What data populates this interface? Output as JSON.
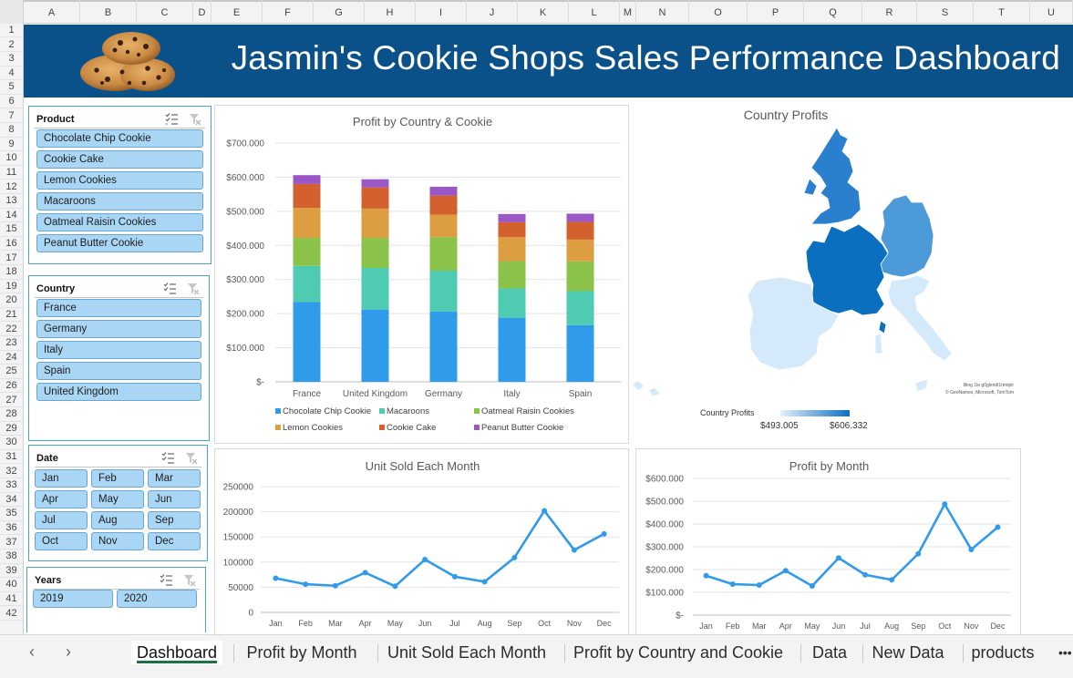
{
  "columns": [
    "A",
    "B",
    "C",
    "D",
    "E",
    "F",
    "G",
    "H",
    "I",
    "J",
    "K",
    "L",
    "M",
    "N",
    "O",
    "P",
    "Q",
    "R",
    "S",
    "T",
    "U"
  ],
  "rows": [
    "1",
    "2",
    "3",
    "4",
    "5",
    "6",
    "7",
    "8",
    "9",
    "10",
    "11",
    "12",
    "13",
    "14",
    "15",
    "16",
    "17",
    "18",
    "19",
    "20",
    "21",
    "22",
    "23",
    "24",
    "25",
    "26",
    "27",
    "28",
    "29",
    "30",
    "31",
    "32",
    "33",
    "34",
    "35",
    "36",
    "37",
    "38",
    "39",
    "40",
    "41",
    "42"
  ],
  "dashboard": {
    "title": "Jasmin's Cookie Shops Sales Performance Dashboard",
    "logo_icon": "cookies-image"
  },
  "slicers": {
    "product": {
      "label": "Product",
      "items": [
        "Chocolate Chip Cookie",
        "Cookie Cake",
        "Lemon Cookies",
        "Macaroons",
        "Oatmeal Raisin Cookies",
        "Peanut Butter Cookie"
      ]
    },
    "country": {
      "label": "Country",
      "items": [
        "France",
        "Germany",
        "Italy",
        "Spain",
        "United Kingdom"
      ]
    },
    "date": {
      "label": "Date",
      "items": [
        "Jan",
        "Feb",
        "Mar",
        "Apr",
        "May",
        "Jun",
        "Jul",
        "Aug",
        "Sep",
        "Oct",
        "Nov",
        "Dec"
      ]
    },
    "years": {
      "label": "Years",
      "items": [
        "2019",
        "2020"
      ]
    },
    "multiselect_icon": "multi-select-icon",
    "clear_icon": "clear-filter-icon"
  },
  "map": {
    "title": "Country Profits",
    "legend_title": "Country Profits",
    "legend_min": "$493.005",
    "legend_max": "$606.332",
    "attribution_line1": "Bing 1le g0glendl1rtmlplr",
    "attribution_line2": "© GeoNames, Microsoft, TomTom",
    "colors": {
      "high": "#0b6fc0",
      "mid": "#2b7fcf",
      "midlow": "#4d9ad8",
      "low": "#d4e9f9"
    }
  },
  "chart_data": [
    {
      "type": "bar",
      "stacked": true,
      "title": "Profit by Country & Cookie",
      "categories": [
        "France",
        "United Kingdom",
        "Germany",
        "Italy",
        "Spain"
      ],
      "y_ticks": [
        "$-",
        "$100.000",
        "$200.000",
        "$300.000",
        "$400.000",
        "$500.000",
        "$600.000",
        "$700.000"
      ],
      "ylim": [
        0,
        700000
      ],
      "legend_position": "bottom",
      "series": [
        {
          "name": "Chocolate Chip Cookie",
          "color": "#2f9bea",
          "values": [
            234000,
            212000,
            206000,
            188000,
            166000
          ]
        },
        {
          "name": "Macaroons",
          "color": "#4ecbb0",
          "values": [
            106000,
            122000,
            120000,
            86000,
            100000
          ]
        },
        {
          "name": "Oatmeal Raisin Cookies",
          "color": "#8bc34a",
          "values": [
            82000,
            88000,
            98000,
            80000,
            87000
          ]
        },
        {
          "name": "Lemon Cookies",
          "color": "#dd9e42",
          "values": [
            88000,
            86000,
            66000,
            70000,
            64000
          ]
        },
        {
          "name": "Cookie Cake",
          "color": "#d3612d",
          "values": [
            70000,
            62000,
            56000,
            44000,
            52000
          ]
        },
        {
          "name": "Peanut Butter Cookie",
          "color": "#9c57c7",
          "values": [
            26000,
            24000,
            26000,
            24000,
            24000
          ]
        }
      ]
    },
    {
      "type": "line",
      "title": "Unit Sold Each Month",
      "categories": [
        "Jan",
        "Feb",
        "Mar",
        "Apr",
        "May",
        "Jun",
        "Jul",
        "Aug",
        "Sep",
        "Oct",
        "Nov",
        "Dec"
      ],
      "y_ticks": [
        "0",
        "50000",
        "100000",
        "150000",
        "200000",
        "250000"
      ],
      "ylim": [
        0,
        250000
      ],
      "color": "#2f9bea",
      "values": [
        68000,
        56000,
        53000,
        79000,
        52000,
        105000,
        71000,
        61000,
        109000,
        202000,
        124000,
        156000
      ]
    },
    {
      "type": "line",
      "title": "Profit by Month",
      "categories": [
        "Jan",
        "Feb",
        "Mar",
        "Apr",
        "May",
        "Jun",
        "Jul",
        "Aug",
        "Sep",
        "Oct",
        "Nov",
        "Dec"
      ],
      "y_ticks": [
        "$-",
        "$100.000",
        "$200.000",
        "$300.000",
        "$400.000",
        "$500.000",
        "$600.000"
      ],
      "ylim": [
        0,
        600000
      ],
      "color": "#2f9bea",
      "values": [
        173000,
        136000,
        132000,
        195000,
        128000,
        251000,
        177000,
        155000,
        269000,
        487000,
        288000,
        386000
      ]
    }
  ],
  "sheet_tabs": {
    "prev_icon": "chevron-left-icon",
    "next_icon": "chevron-right-icon",
    "more_icon": "more-tabs-icon",
    "more_label": "•••",
    "prev_label": "‹",
    "next_label": "›",
    "items": [
      "Dashboard",
      "Profit by Month",
      "Unit Sold Each Month",
      "Profit by Country and Cookie",
      "Data",
      "New Data",
      "products"
    ],
    "active": "Dashboard"
  }
}
